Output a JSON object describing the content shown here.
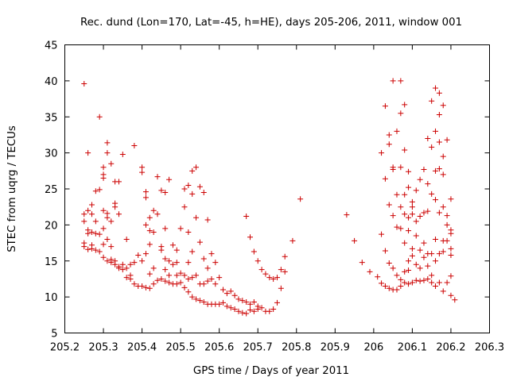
{
  "chart_data": {
    "type": "scatter",
    "title": "Rec. dund (Lon=170, Lat=-45, h=HE), days 205-206, 2011, window 001",
    "xlabel": "GPS time / Days of year 2011",
    "ylabel": "STEC from uqrg / TECUs",
    "xlim": [
      205.2,
      206.3
    ],
    "ylim": [
      5,
      45
    ],
    "xticks": [
      205.2,
      205.3,
      205.4,
      205.5,
      205.6,
      205.7,
      205.8,
      205.9,
      206.0,
      206.1,
      206.2,
      206.3
    ],
    "xtick_labels": [
      "205.2",
      "205.3",
      "205.4",
      "205.5",
      "205.6",
      "205.7",
      "205.8",
      "205.9",
      "206",
      "206.1",
      "206.2",
      "206.3"
    ],
    "yticks": [
      5,
      10,
      15,
      20,
      25,
      30,
      35,
      40,
      45
    ],
    "ytick_labels": [
      "5",
      "10",
      "15",
      "20",
      "25",
      "30",
      "35",
      "40",
      "45"
    ],
    "grid": false,
    "marker": "+",
    "marker_color": "#cc0000",
    "series": [
      {
        "name": "STEC",
        "points": [
          [
            205.25,
            39.6
          ],
          [
            205.25,
            21.5
          ],
          [
            205.25,
            20.5
          ],
          [
            205.25,
            17.5
          ],
          [
            205.25,
            17.0
          ],
          [
            205.26,
            30.0
          ],
          [
            205.26,
            22.0
          ],
          [
            205.26,
            19.3
          ],
          [
            205.26,
            18.8
          ],
          [
            205.26,
            16.6
          ],
          [
            205.27,
            22.8
          ],
          [
            205.27,
            21.5
          ],
          [
            205.27,
            19.0
          ],
          [
            205.27,
            17.2
          ],
          [
            205.27,
            16.7
          ],
          [
            205.28,
            24.7
          ],
          [
            205.28,
            20.5
          ],
          [
            205.28,
            18.8
          ],
          [
            205.28,
            16.5
          ],
          [
            205.29,
            35.0
          ],
          [
            205.29,
            24.9
          ],
          [
            205.29,
            18.7
          ],
          [
            205.29,
            16.3
          ],
          [
            205.3,
            28.0
          ],
          [
            205.3,
            27.0
          ],
          [
            205.3,
            26.5
          ],
          [
            205.3,
            22.0
          ],
          [
            205.3,
            19.5
          ],
          [
            205.3,
            17.3
          ],
          [
            205.3,
            15.5
          ],
          [
            205.31,
            31.4
          ],
          [
            205.31,
            30.0
          ],
          [
            205.31,
            21.6
          ],
          [
            205.31,
            21.0
          ],
          [
            205.31,
            18.0
          ],
          [
            205.31,
            15.0
          ],
          [
            205.32,
            28.5
          ],
          [
            205.32,
            20.5
          ],
          [
            205.32,
            17.0
          ],
          [
            205.32,
            15.2
          ],
          [
            205.32,
            14.8
          ],
          [
            205.33,
            26.0
          ],
          [
            205.33,
            23.0
          ],
          [
            205.33,
            22.5
          ],
          [
            205.33,
            15.0
          ],
          [
            205.33,
            14.5
          ],
          [
            205.34,
            26.0
          ],
          [
            205.34,
            21.5
          ],
          [
            205.34,
            14.2
          ],
          [
            205.34,
            14.0
          ],
          [
            205.35,
            29.8
          ],
          [
            205.35,
            14.5
          ],
          [
            205.35,
            13.8
          ],
          [
            205.36,
            18.0
          ],
          [
            205.36,
            14.0
          ],
          [
            205.36,
            12.7
          ],
          [
            205.37,
            14.5
          ],
          [
            205.37,
            13.0
          ],
          [
            205.37,
            12.5
          ],
          [
            205.38,
            31.0
          ],
          [
            205.38,
            14.8
          ],
          [
            205.38,
            11.8
          ],
          [
            205.39,
            15.8
          ],
          [
            205.39,
            11.5
          ],
          [
            205.4,
            28.0
          ],
          [
            205.4,
            27.3
          ],
          [
            205.4,
            15.0
          ],
          [
            205.4,
            11.5
          ],
          [
            205.41,
            24.6
          ],
          [
            205.41,
            23.8
          ],
          [
            205.41,
            20.0
          ],
          [
            205.41,
            16.0
          ],
          [
            205.41,
            11.3
          ],
          [
            205.42,
            21.0
          ],
          [
            205.42,
            19.2
          ],
          [
            205.42,
            17.3
          ],
          [
            205.42,
            13.2
          ],
          [
            205.42,
            11.2
          ],
          [
            205.43,
            22.0
          ],
          [
            205.43,
            19.0
          ],
          [
            205.43,
            14.0
          ],
          [
            205.43,
            11.8
          ],
          [
            205.44,
            26.7
          ],
          [
            205.44,
            21.5
          ],
          [
            205.44,
            12.3
          ],
          [
            205.45,
            24.8
          ],
          [
            205.45,
            17.0
          ],
          [
            205.45,
            16.5
          ],
          [
            205.45,
            12.5
          ],
          [
            205.46,
            24.5
          ],
          [
            205.46,
            19.5
          ],
          [
            205.46,
            15.3
          ],
          [
            205.46,
            13.8
          ],
          [
            205.46,
            12.2
          ],
          [
            205.47,
            26.3
          ],
          [
            205.47,
            15.0
          ],
          [
            205.47,
            13.0
          ],
          [
            205.47,
            12.0
          ],
          [
            205.48,
            17.2
          ],
          [
            205.48,
            14.5
          ],
          [
            205.48,
            11.8
          ],
          [
            205.49,
            16.5
          ],
          [
            205.49,
            14.8
          ],
          [
            205.49,
            13.0
          ],
          [
            205.49,
            11.8
          ],
          [
            205.5,
            19.5
          ],
          [
            205.5,
            13.3
          ],
          [
            205.5,
            12.0
          ],
          [
            205.51,
            25.0
          ],
          [
            205.51,
            22.5
          ],
          [
            205.51,
            13.0
          ],
          [
            205.51,
            11.3
          ],
          [
            205.52,
            25.5
          ],
          [
            205.52,
            19.0
          ],
          [
            205.52,
            14.8
          ],
          [
            205.52,
            12.5
          ],
          [
            205.52,
            10.7
          ],
          [
            205.53,
            27.5
          ],
          [
            205.53,
            24.3
          ],
          [
            205.53,
            16.3
          ],
          [
            205.53,
            12.7
          ],
          [
            205.53,
            10.0
          ],
          [
            205.54,
            28.0
          ],
          [
            205.54,
            21.0
          ],
          [
            205.54,
            13.0
          ],
          [
            205.54,
            9.7
          ],
          [
            205.55,
            25.3
          ],
          [
            205.55,
            17.6
          ],
          [
            205.55,
            11.8
          ],
          [
            205.55,
            9.5
          ],
          [
            205.56,
            24.5
          ],
          [
            205.56,
            15.3
          ],
          [
            205.56,
            11.8
          ],
          [
            205.56,
            9.3
          ],
          [
            205.57,
            20.7
          ],
          [
            205.57,
            14.0
          ],
          [
            205.57,
            12.2
          ],
          [
            205.57,
            9.0
          ],
          [
            205.58,
            16.0
          ],
          [
            205.58,
            12.5
          ],
          [
            205.58,
            9.0
          ],
          [
            205.59,
            14.8
          ],
          [
            205.59,
            11.8
          ],
          [
            205.59,
            9.0
          ],
          [
            205.6,
            12.7
          ],
          [
            205.6,
            9.0
          ],
          [
            205.61,
            11.0
          ],
          [
            205.61,
            9.2
          ],
          [
            205.62,
            10.5
          ],
          [
            205.62,
            8.7
          ],
          [
            205.63,
            10.8
          ],
          [
            205.63,
            8.5
          ],
          [
            205.64,
            10.2
          ],
          [
            205.64,
            8.3
          ],
          [
            205.65,
            9.7
          ],
          [
            205.65,
            8.0
          ],
          [
            205.66,
            9.5
          ],
          [
            205.66,
            7.8
          ],
          [
            205.67,
            21.2
          ],
          [
            205.67,
            9.3
          ],
          [
            205.67,
            7.7
          ],
          [
            205.68,
            18.3
          ],
          [
            205.68,
            9.0
          ],
          [
            205.68,
            8.2
          ],
          [
            205.69,
            16.3
          ],
          [
            205.69,
            9.3
          ],
          [
            205.69,
            8.0
          ],
          [
            205.7,
            15.0
          ],
          [
            205.7,
            8.7
          ],
          [
            205.7,
            8.3
          ],
          [
            205.71,
            13.8
          ],
          [
            205.71,
            8.5
          ],
          [
            205.72,
            13.2
          ],
          [
            205.72,
            8.0
          ],
          [
            205.73,
            12.7
          ],
          [
            205.73,
            8.0
          ],
          [
            205.74,
            12.5
          ],
          [
            205.74,
            8.3
          ],
          [
            205.75,
            12.7
          ],
          [
            205.75,
            9.2
          ],
          [
            205.76,
            13.8
          ],
          [
            205.76,
            11.2
          ],
          [
            205.77,
            15.6
          ],
          [
            205.77,
            13.5
          ],
          [
            205.79,
            17.8
          ],
          [
            205.81,
            23.6
          ],
          [
            205.93,
            21.4
          ],
          [
            205.95,
            17.8
          ],
          [
            205.97,
            14.8
          ],
          [
            205.99,
            13.5
          ],
          [
            206.01,
            12.8
          ],
          [
            206.02,
            30.0
          ],
          [
            206.02,
            18.7
          ],
          [
            206.02,
            11.9
          ],
          [
            206.03,
            36.5
          ],
          [
            206.03,
            26.4
          ],
          [
            206.03,
            16.4
          ],
          [
            206.03,
            11.5
          ],
          [
            206.04,
            32.5
          ],
          [
            206.04,
            31.2
          ],
          [
            206.04,
            22.8
          ],
          [
            206.04,
            14.7
          ],
          [
            206.04,
            11.2
          ],
          [
            206.05,
            40.0
          ],
          [
            206.05,
            28.0
          ],
          [
            206.05,
            27.7
          ],
          [
            206.05,
            21.3
          ],
          [
            206.05,
            14.0
          ],
          [
            206.05,
            11.0
          ],
          [
            206.06,
            33.0
          ],
          [
            206.06,
            24.2
          ],
          [
            206.06,
            19.7
          ],
          [
            206.06,
            13.0
          ],
          [
            206.06,
            11.0
          ],
          [
            206.07,
            40.0
          ],
          [
            206.07,
            35.5
          ],
          [
            206.07,
            28.0
          ],
          [
            206.07,
            22.5
          ],
          [
            206.07,
            19.5
          ],
          [
            206.07,
            12.4
          ],
          [
            206.07,
            11.5
          ],
          [
            206.08,
            36.7
          ],
          [
            206.08,
            30.4
          ],
          [
            206.08,
            24.2
          ],
          [
            206.08,
            21.5
          ],
          [
            206.08,
            17.5
          ],
          [
            206.08,
            13.5
          ],
          [
            206.08,
            12.0
          ],
          [
            206.09,
            27.4
          ],
          [
            206.09,
            25.2
          ],
          [
            206.09,
            21.0
          ],
          [
            206.09,
            19.2
          ],
          [
            206.09,
            15.0
          ],
          [
            206.09,
            13.7
          ],
          [
            206.09,
            11.8
          ],
          [
            206.1,
            23.2
          ],
          [
            206.1,
            22.5
          ],
          [
            206.1,
            21.5
          ],
          [
            206.1,
            16.7
          ],
          [
            206.1,
            15.7
          ],
          [
            206.1,
            12.0
          ],
          [
            206.11,
            24.8
          ],
          [
            206.11,
            20.5
          ],
          [
            206.11,
            18.5
          ],
          [
            206.11,
            14.5
          ],
          [
            206.11,
            12.3
          ],
          [
            206.12,
            26.3
          ],
          [
            206.12,
            21.2
          ],
          [
            206.12,
            16.5
          ],
          [
            206.12,
            14.0
          ],
          [
            206.12,
            12.2
          ],
          [
            206.13,
            27.7
          ],
          [
            206.13,
            21.7
          ],
          [
            206.13,
            17.5
          ],
          [
            206.13,
            15.5
          ],
          [
            206.13,
            12.3
          ],
          [
            206.14,
            32.0
          ],
          [
            206.14,
            25.7
          ],
          [
            206.14,
            21.9
          ],
          [
            206.14,
            16.0
          ],
          [
            206.14,
            14.3
          ],
          [
            206.14,
            12.5
          ],
          [
            206.15,
            37.2
          ],
          [
            206.15,
            30.8
          ],
          [
            206.15,
            24.3
          ],
          [
            206.15,
            16.0
          ],
          [
            206.15,
            13.0
          ],
          [
            206.15,
            12.0
          ],
          [
            206.16,
            39.0
          ],
          [
            206.16,
            33.0
          ],
          [
            206.16,
            27.5
          ],
          [
            206.16,
            23.5
          ],
          [
            206.16,
            18.0
          ],
          [
            206.16,
            15.0
          ],
          [
            206.16,
            11.5
          ],
          [
            206.17,
            38.3
          ],
          [
            206.17,
            35.3
          ],
          [
            206.17,
            31.5
          ],
          [
            206.17,
            27.8
          ],
          [
            206.17,
            21.7
          ],
          [
            206.17,
            16.0
          ],
          [
            206.17,
            12.0
          ],
          [
            206.18,
            36.6
          ],
          [
            206.18,
            29.5
          ],
          [
            206.18,
            27.0
          ],
          [
            206.18,
            22.5
          ],
          [
            206.18,
            17.8
          ],
          [
            206.18,
            16.3
          ],
          [
            206.18,
            10.8
          ],
          [
            206.19,
            31.8
          ],
          [
            206.19,
            21.3
          ],
          [
            206.19,
            20.0
          ],
          [
            206.19,
            17.8
          ],
          [
            206.19,
            12.0
          ],
          [
            206.2,
            23.6
          ],
          [
            206.2,
            19.3
          ],
          [
            206.2,
            18.8
          ],
          [
            206.2,
            16.7
          ],
          [
            206.2,
            15.8
          ],
          [
            206.2,
            12.9
          ],
          [
            206.2,
            10.2
          ],
          [
            206.21,
            9.6
          ]
        ]
      }
    ]
  }
}
